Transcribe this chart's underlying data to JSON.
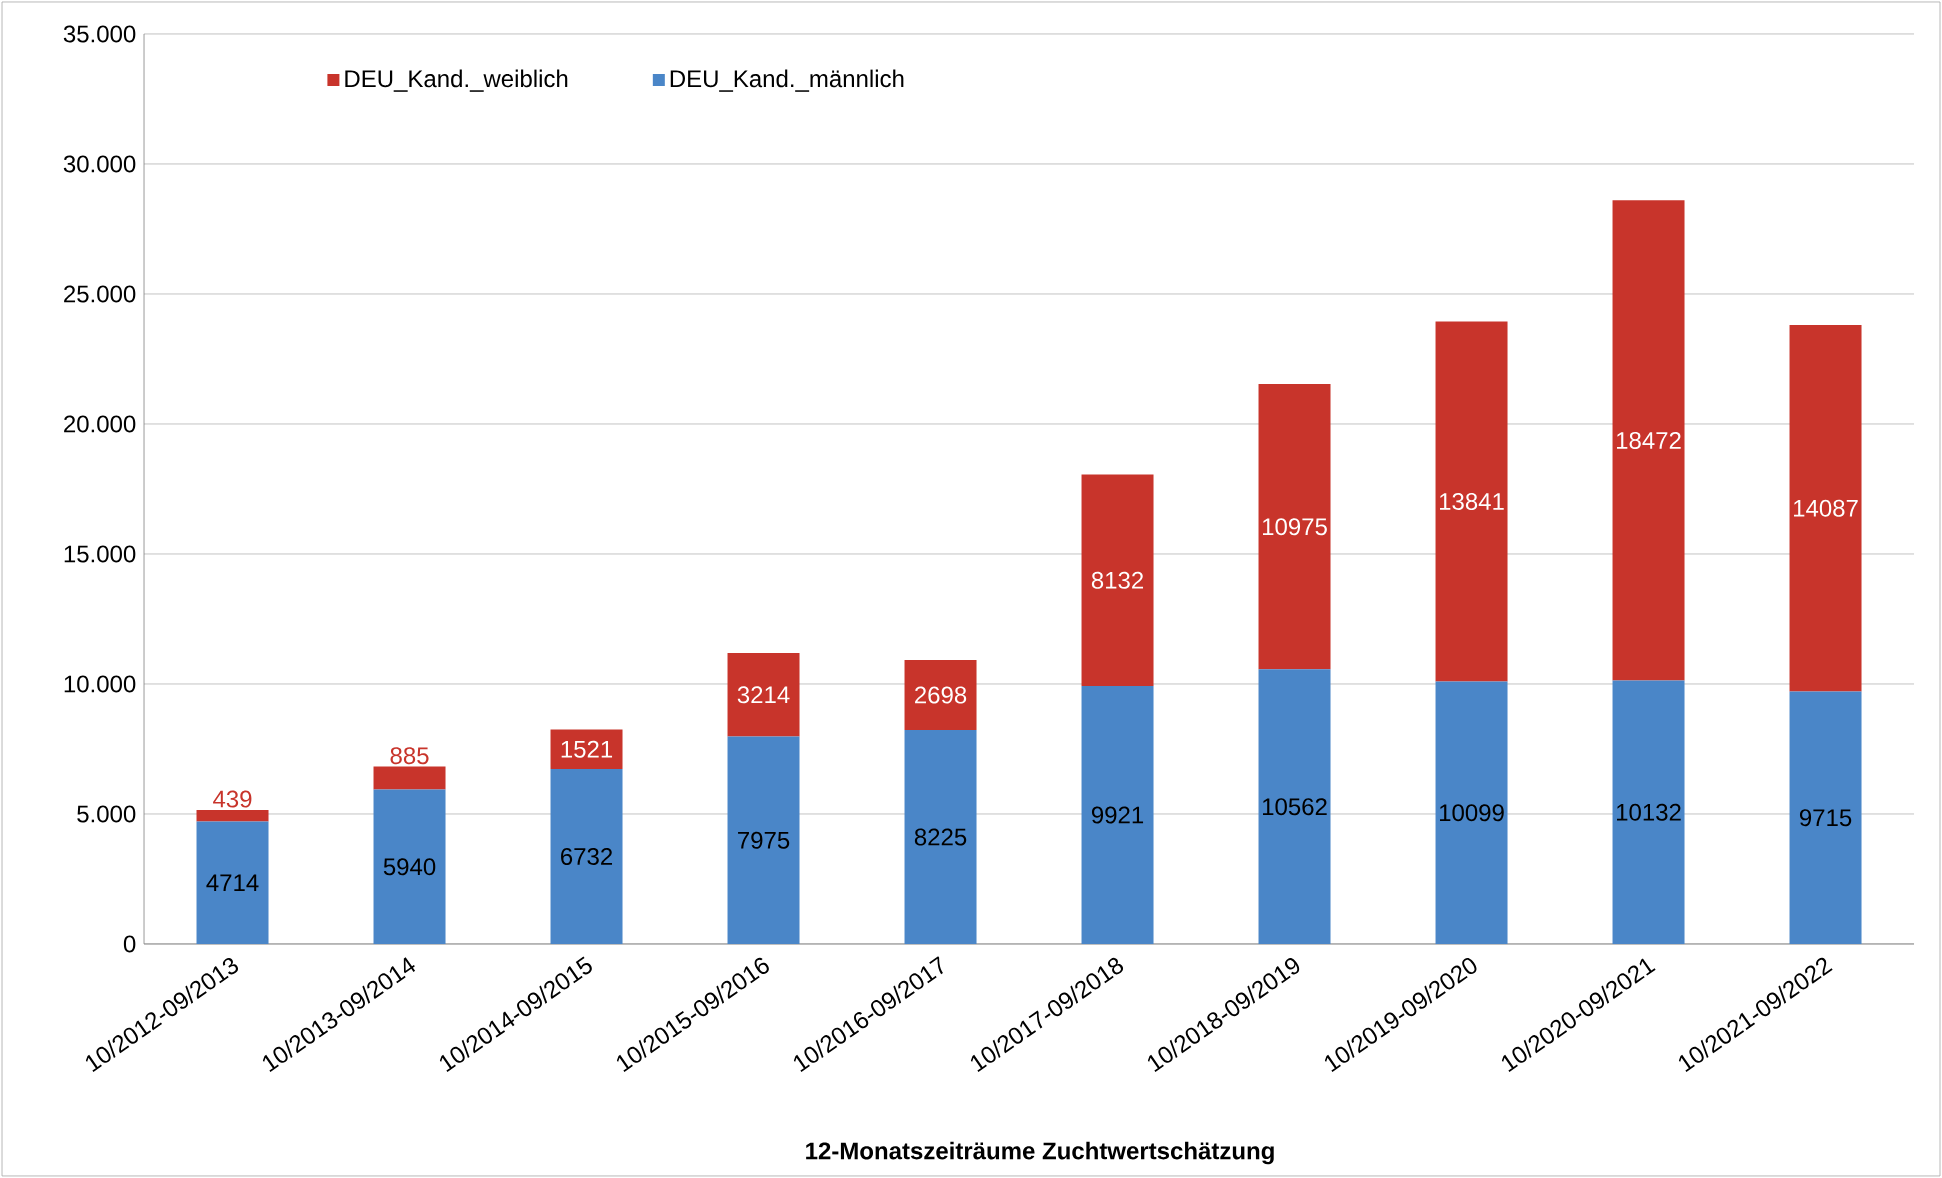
{
  "chart_data": {
    "type": "bar",
    "stacked": true,
    "xlabel": "12-Monatszeiträume Zuchtwertschätzung",
    "categories": [
      "10/2012-09/2013",
      "10/2013-09/2014",
      "10/2014-09/2015",
      "10/2015-09/2016",
      "10/2016-09/2017",
      "10/2017-09/2018",
      "10/2018-09/2019",
      "10/2019-09/2020",
      "10/2020-09/2021",
      "10/2021-09/2022"
    ],
    "series": [
      {
        "name": "DEU_Kand._männlich",
        "color": "#4a86c8",
        "values": [
          4714,
          5940,
          6732,
          7975,
          8225,
          9921,
          10562,
          10099,
          10132,
          9715
        ]
      },
      {
        "name": "DEU_Kand._weiblich",
        "color": "#c8342b",
        "values": [
          439,
          885,
          1521,
          3214,
          2698,
          8132,
          10975,
          13841,
          18472,
          14087
        ]
      }
    ],
    "ylim": [
      0,
      35000
    ],
    "yticks": [
      {
        "value": 0,
        "label": "0"
      },
      {
        "value": 5000,
        "label": "5.000"
      },
      {
        "value": 10000,
        "label": "10.000"
      },
      {
        "value": 15000,
        "label": "15.000"
      },
      {
        "value": 20000,
        "label": "20.000"
      },
      {
        "value": 25000,
        "label": "25.000"
      },
      {
        "value": 30000,
        "label": "30.000"
      },
      {
        "value": 35000,
        "label": "35.000"
      }
    ],
    "grid": "y",
    "legend": "top left",
    "data_labels": true
  }
}
